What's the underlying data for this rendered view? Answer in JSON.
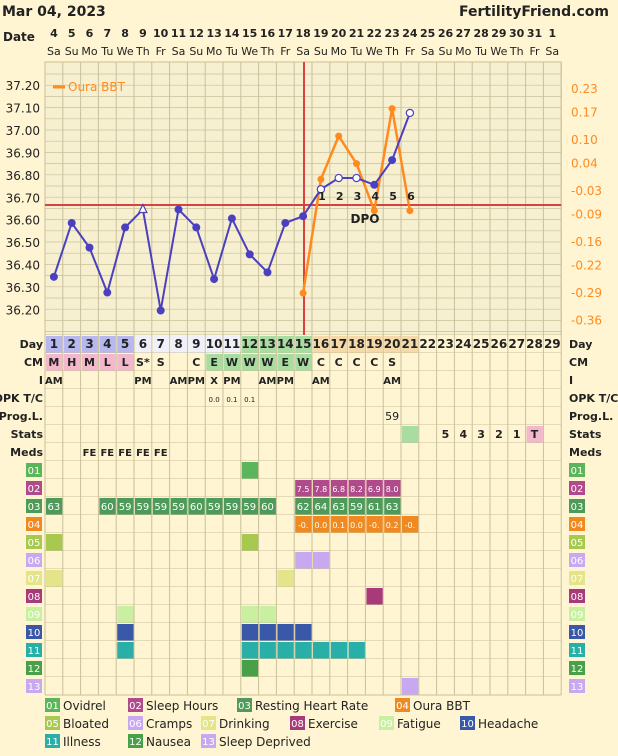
{
  "header": {
    "date": "Mar 04, 2023",
    "brand": "FertilityFriend.com"
  },
  "days": [
    "1",
    "2",
    "3",
    "4",
    "5",
    "6",
    "7",
    "8",
    "9",
    "10",
    "11",
    "12",
    "13",
    "14",
    "15",
    "16",
    "17",
    "18",
    "19",
    "20",
    "21",
    "22",
    "23",
    "24",
    "25",
    "26",
    "27",
    "28",
    "29"
  ],
  "dates": [
    "4",
    "5",
    "6",
    "7",
    "8",
    "9",
    "10",
    "11",
    "12",
    "13",
    "14",
    "15",
    "16",
    "17",
    "18",
    "19",
    "20",
    "21",
    "22",
    "23",
    "24",
    "25",
    "26",
    "27",
    "28",
    "29",
    "30",
    "31",
    "1"
  ],
  "weekdays": [
    "Sa",
    "Su",
    "Mo",
    "Tu",
    "We",
    "Th",
    "Fr",
    "Sa",
    "Su",
    "Mo",
    "Tu",
    "We",
    "Th",
    "Fr",
    "Sa",
    "Su",
    "Mo",
    "Tu",
    "We",
    "Th",
    "Fr",
    "Sa",
    "Su",
    "Mo",
    "Tu",
    "We",
    "Th",
    "Fr",
    "Sa"
  ],
  "labels": {
    "date": "Date",
    "day": "Day",
    "cm": "CM",
    "i": "I",
    "opk": "OPK T/C",
    "prog": "Prog.L.",
    "stats": "Stats",
    "meds": "Meds",
    "dpo": "DPO"
  },
  "colors": {
    "bg": "#fff5d2",
    "grid": "#c8c19a",
    "bbt": "#4a40c0",
    "oura": "#ff8a1f",
    "coverline": "#d94040",
    "accent_red": "#c0242c"
  },
  "chart_data": {
    "type": "line",
    "xlabel": "Day",
    "x": [
      1,
      2,
      3,
      4,
      5,
      6,
      7,
      8,
      9,
      10,
      11,
      12,
      13,
      14,
      15,
      16,
      17,
      18,
      19,
      20,
      21
    ],
    "ylim": [
      36.1,
      37.3
    ],
    "y_ticks": [
      "37.20",
      "37.10",
      "37.00",
      "36.90",
      "36.80",
      "36.70",
      "36.60",
      "36.50",
      "36.40",
      "36.30",
      "36.20"
    ],
    "y2_ticks": [
      "0.23",
      "0.17",
      "0.10",
      "0.04",
      "-0.03",
      "-0.09",
      "-0.16",
      "-0.22",
      "-0.29",
      "-0.36"
    ],
    "coverline": 36.67,
    "ovulation_day": 15,
    "legend": "top-left",
    "grid": true,
    "series": [
      {
        "name": "BBT",
        "values": [
          36.35,
          36.59,
          36.48,
          36.28,
          36.57,
          36.65,
          36.2,
          36.65,
          36.57,
          36.34,
          36.61,
          36.45,
          36.37,
          36.59,
          36.62,
          36.74,
          36.79,
          36.79,
          36.76,
          36.87,
          37.08
        ],
        "open": [
          false,
          false,
          false,
          false,
          false,
          true,
          false,
          false,
          false,
          false,
          false,
          false,
          false,
          false,
          false,
          true,
          true,
          true,
          false,
          false,
          true
        ]
      },
      {
        "name": "Oura BBT",
        "x": [
          15,
          16,
          17,
          18,
          19,
          20,
          21
        ],
        "values": [
          -0.29,
          0.0,
          0.11,
          0.04,
          -0.08,
          0.18,
          -0.08
        ]
      }
    ],
    "dpo_labels": [
      "1",
      "2",
      "3",
      "4",
      "5",
      "6"
    ]
  },
  "cm": [
    "M",
    "H",
    "M",
    "L",
    "L",
    "S*",
    "S",
    "",
    "C",
    "E",
    "W",
    "W",
    "W",
    "E",
    "W",
    "C",
    "C",
    "C",
    "C",
    "S",
    "",
    "",
    "",
    "",
    "",
    "",
    "",
    "",
    ""
  ],
  "intercourse": [
    "AM",
    "",
    "",
    "",
    "",
    "PM",
    "",
    "AM",
    "PM",
    "X",
    "PM",
    "",
    "AM",
    "PM",
    "",
    "AM",
    "",
    "",
    "",
    "AM",
    "",
    "",
    "",
    "",
    "",
    "",
    "",
    "",
    ""
  ],
  "opk": [
    "",
    "",
    "",
    "",
    "",
    "",
    "",
    "",
    "",
    "0.0",
    "0.1",
    "0.1",
    "",
    "",
    "",
    "",
    "",
    "",
    "",
    "",
    "",
    "",
    "",
    "",
    "",
    "",
    "",
    "",
    ""
  ],
  "prog": [
    "",
    "",
    "",
    "",
    "",
    "",
    "",
    "",
    "",
    "",
    "",
    "",
    "",
    "",
    "",
    "",
    "",
    "",
    "",
    "59",
    "",
    "",
    "",
    "",
    "",
    "",
    "",
    "",
    ""
  ],
  "stats": [
    "",
    "",
    "",
    "",
    "",
    "",
    "",
    "",
    "",
    "",
    "",
    "",
    "",
    "",
    "",
    "",
    "",
    "",
    "",
    "",
    "",
    "",
    "5",
    "4",
    "3",
    "2",
    "1",
    "T",
    ""
  ],
  "meds": [
    "",
    "",
    "FE",
    "FE",
    "FE",
    "FE",
    "FE",
    "",
    "",
    "",
    "",
    "",
    "",
    "",
    "",
    "",
    "",
    "",
    "",
    "",
    "",
    "",
    "",
    "",
    "",
    "",
    "",
    "",
    ""
  ],
  "rows": [
    {
      "code": "01",
      "name": "Ovidrel",
      "color": "#5bb55b",
      "cells": {
        "12": ""
      }
    },
    {
      "code": "02",
      "name": "Sleep Hours",
      "color": "#b04a8a",
      "cells": {
        "15": "7.5",
        "16": "7.8",
        "17": "6.8",
        "18": "8.2",
        "19": "6.9",
        "20": "8.0"
      }
    },
    {
      "code": "03",
      "name": "Resting Heart Rate",
      "color": "#4e9a5a",
      "cells": {
        "1": "63",
        "4": "60",
        "5": "59",
        "6": "59",
        "7": "59",
        "8": "59",
        "9": "60",
        "10": "59",
        "11": "59",
        "12": "59",
        "13": "60",
        "15": "62",
        "16": "64",
        "17": "63",
        "18": "59",
        "19": "61",
        "20": "63"
      }
    },
    {
      "code": "04",
      "name": "Oura BBT",
      "color": "#f08a20",
      "cells": {
        "15": "-0.",
        "16": "0.0",
        "17": "0.1",
        "18": "0.0",
        "19": "-0.",
        "20": "0.2",
        "21": "-0."
      }
    },
    {
      "code": "05",
      "name": "Bloated",
      "color": "#a8c850",
      "cells": {
        "1": "",
        "12": ""
      }
    },
    {
      "code": "06",
      "name": "Cramps",
      "color": "#c8a8f0",
      "cells": {
        "15": "",
        "16": ""
      }
    },
    {
      "code": "07",
      "name": "Drinking",
      "color": "#e4e48a",
      "cells": {
        "1": "",
        "14": ""
      }
    },
    {
      "code": "08",
      "name": "Exercise",
      "color": "#a83a7a",
      "cells": {
        "19": ""
      }
    },
    {
      "code": "09",
      "name": "Fatigue",
      "color": "#c8f0a0",
      "cells": {
        "5": "",
        "12": "",
        "13": ""
      }
    },
    {
      "code": "10",
      "name": "Headache",
      "color": "#3a58a8",
      "cells": {
        "5": "",
        "12": "",
        "13": "",
        "14": "",
        "15": ""
      }
    },
    {
      "code": "11",
      "name": "Illness",
      "color": "#28b0a8",
      "cells": {
        "5": "",
        "12": "",
        "13": "",
        "14": "",
        "15": "",
        "16": "",
        "17": "",
        "18": ""
      }
    },
    {
      "code": "12",
      "name": "Nausea",
      "color": "#48a048",
      "cells": {
        "12": ""
      }
    },
    {
      "code": "13",
      "name": "Sleep Deprived",
      "color": "#c8a8f0",
      "cells": {
        "21": ""
      }
    }
  ]
}
